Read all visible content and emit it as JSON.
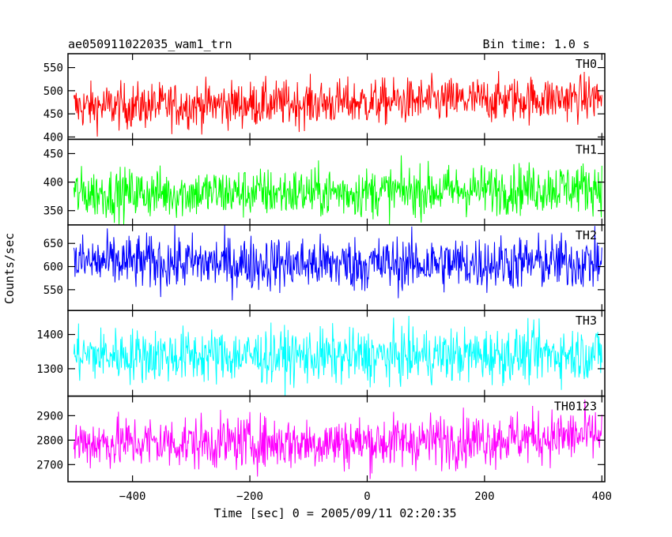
{
  "chart_data": {
    "type": "line",
    "title": "ae050911022035_wam1_trn",
    "bin_time_label": "Bin time: 1.0 s",
    "xlabel": "Time [sec] 0 = 2005/09/11 02:20:35",
    "ylabel": "Counts/sec",
    "xlim": [
      -510,
      405
    ],
    "xticks": [
      -400,
      -200,
      0,
      200,
      400
    ],
    "xtick_labels": [
      "−400",
      "−200",
      "0",
      "200",
      "400"
    ],
    "bin_time_s": 1.0,
    "x_start": -500,
    "x_end": 400,
    "grid": false,
    "panels": [
      {
        "name": "TH0",
        "color": "#ff0000",
        "ylim": [
          395,
          580
        ],
        "yticks": [
          400,
          450,
          500,
          550
        ],
        "trend": [
          [
            -500,
            465
          ],
          [
            0,
            475
          ],
          [
            400,
            485
          ]
        ],
        "spread": 25
      },
      {
        "name": "TH1",
        "color": "#00ff00",
        "ylim": [
          325,
          475
        ],
        "yticks": [
          350,
          400,
          450
        ],
        "trend": [
          [
            -500,
            380
          ],
          [
            0,
            382
          ],
          [
            400,
            392
          ]
        ],
        "spread": 22
      },
      {
        "name": "TH2",
        "color": "#0000ff",
        "ylim": [
          505,
          690
        ],
        "yticks": [
          550,
          600,
          650
        ],
        "trend": [
          [
            -500,
            610
          ],
          [
            0,
            605
          ],
          [
            400,
            610
          ]
        ],
        "spread": 30
      },
      {
        "name": "TH3",
        "color": "#00ffff",
        "ylim": [
          1220,
          1470
        ],
        "yticks": [
          1300,
          1400
        ],
        "trend": [
          [
            -500,
            1340
          ],
          [
            0,
            1335
          ],
          [
            400,
            1345
          ]
        ],
        "spread": 40
      },
      {
        "name": "TH0123",
        "color": "#ff00ff",
        "ylim": [
          2630,
          2980
        ],
        "yticks": [
          2700,
          2800,
          2900
        ],
        "trend": [
          [
            -500,
            2790
          ],
          [
            0,
            2790
          ],
          [
            400,
            2820
          ]
        ],
        "spread": 55
      }
    ]
  }
}
